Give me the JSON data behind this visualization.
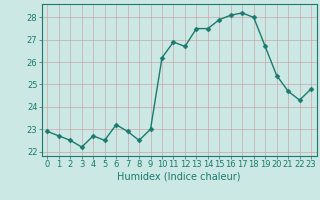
{
  "x": [
    0,
    1,
    2,
    3,
    4,
    5,
    6,
    7,
    8,
    9,
    10,
    11,
    12,
    13,
    14,
    15,
    16,
    17,
    18,
    19,
    20,
    21,
    22,
    23
  ],
  "y": [
    22.9,
    22.7,
    22.5,
    22.2,
    22.7,
    22.5,
    23.2,
    22.9,
    22.5,
    23.0,
    26.2,
    26.9,
    26.7,
    27.5,
    27.5,
    27.9,
    28.1,
    28.2,
    28.0,
    26.7,
    25.4,
    24.7,
    24.3,
    24.8
  ],
  "xlabel": "Humidex (Indice chaleur)",
  "ylim": [
    21.8,
    28.6
  ],
  "xlim": [
    -0.5,
    23.5
  ],
  "yticks": [
    22,
    23,
    24,
    25,
    26,
    27,
    28
  ],
  "xticks": [
    0,
    1,
    2,
    3,
    4,
    5,
    6,
    7,
    8,
    9,
    10,
    11,
    12,
    13,
    14,
    15,
    16,
    17,
    18,
    19,
    20,
    21,
    22,
    23
  ],
  "line_color": "#1a7a6e",
  "marker_color": "#1a7a6e",
  "bg_color": "#cce8e4",
  "grid_color": "#c8a8a8",
  "xlabel_color": "#1a7a6e",
  "tick_color": "#1a7a6e",
  "spine_color": "#1a7a6e",
  "xlabel_fontsize": 7.0,
  "tick_fontsize": 6.0,
  "marker_size": 2.5,
  "linewidth": 1.0
}
